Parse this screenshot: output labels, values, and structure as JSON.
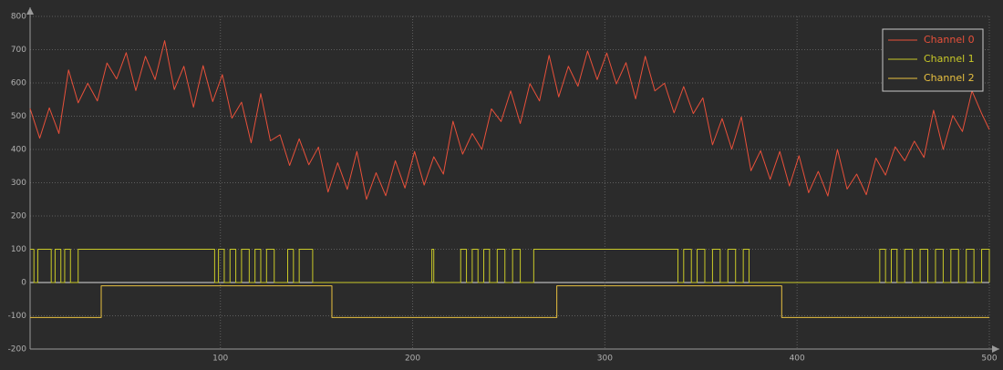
{
  "chart_data": {
    "type": "line",
    "xlim": [
      1,
      500
    ],
    "xticks": [
      100,
      200,
      300,
      400,
      500
    ],
    "ylim": [
      -200,
      800
    ],
    "yticks": [
      -200,
      -100,
      0,
      100,
      200,
      300,
      400,
      500,
      600,
      700,
      800
    ],
    "grid": true,
    "legend": "upper right",
    "series": [
      {
        "name": "Channel 0",
        "color": "#e8503a",
        "x": [
          1,
          6,
          11,
          16,
          21,
          26,
          31,
          36,
          41,
          46,
          51,
          56,
          61,
          66,
          71,
          76,
          81,
          86,
          91,
          96,
          101,
          106,
          111,
          116,
          121,
          126,
          131,
          136,
          141,
          146,
          151,
          156,
          161,
          166,
          171,
          176,
          181,
          186,
          191,
          196,
          201,
          206,
          211,
          216,
          221,
          226,
          231,
          236,
          241,
          246,
          251,
          256,
          261,
          266,
          271,
          276,
          281,
          286,
          291,
          296,
          301,
          306,
          311,
          316,
          321,
          326,
          331,
          336,
          341,
          346,
          351,
          356,
          361,
          366,
          371,
          376,
          381,
          386,
          391,
          396,
          401,
          406,
          411,
          416,
          421,
          426,
          431,
          436,
          441,
          446,
          451,
          456,
          461,
          466,
          471,
          476,
          481,
          486,
          491,
          496,
          500
        ],
        "values": [
          523,
          434,
          525,
          448,
          639,
          540,
          599,
          546,
          660,
          612,
          691,
          577,
          680,
          610,
          727,
          580,
          650,
          527,
          652,
          544,
          625,
          494,
          542,
          420,
          568,
          426,
          444,
          352,
          432,
          354,
          407,
          272,
          360,
          280,
          394,
          250,
          330,
          261,
          366,
          284,
          394,
          293,
          378,
          326,
          485,
          386,
          448,
          400,
          522,
          484,
          576,
          478,
          598,
          546,
          683,
          558,
          650,
          590,
          696,
          610,
          690,
          597,
          661,
          552,
          680,
          576,
          599,
          510,
          589,
          508,
          555,
          414,
          493,
          401,
          498,
          336,
          396,
          310,
          394,
          290,
          381,
          270,
          334,
          260,
          400,
          281,
          326,
          264,
          374,
          323,
          408,
          366,
          425,
          376,
          518,
          400,
          502,
          454,
          576,
          508,
          460
        ]
      },
      {
        "name": "Channel 1",
        "color": "#c9c928",
        "step": true,
        "x": [
          1,
          3,
          5,
          12,
          14,
          17,
          19,
          22,
          26,
          97,
          99,
          102,
          105,
          108,
          111,
          115,
          118,
          121,
          124,
          128,
          135,
          138,
          141,
          148,
          210,
          211,
          225,
          228,
          231,
          234,
          237,
          240,
          244,
          248,
          252,
          256,
          263,
          338,
          341,
          345,
          348,
          352,
          356,
          360,
          364,
          368,
          372,
          375,
          443,
          446,
          449,
          452,
          456,
          460,
          464,
          468,
          472,
          476,
          480,
          484,
          488,
          492,
          496,
          500
        ],
        "values": [
          100,
          0,
          100,
          0,
          100,
          0,
          100,
          0,
          100,
          0,
          100,
          0,
          100,
          0,
          100,
          0,
          100,
          0,
          100,
          0,
          100,
          0,
          100,
          0,
          100,
          0,
          100,
          0,
          100,
          0,
          100,
          0,
          100,
          0,
          100,
          0,
          100,
          0,
          100,
          0,
          100,
          0,
          100,
          0,
          100,
          0,
          100,
          0,
          100,
          0,
          100,
          0,
          100,
          0,
          100,
          0,
          100,
          0,
          100,
          0,
          100,
          0,
          100,
          0
        ]
      },
      {
        "name": "Channel 2",
        "color": "#e8c040",
        "step": true,
        "x": [
          1,
          38,
          158,
          275,
          392,
          500
        ],
        "values": [
          -105,
          -10,
          -105,
          -10,
          -105,
          -105
        ]
      }
    ]
  }
}
